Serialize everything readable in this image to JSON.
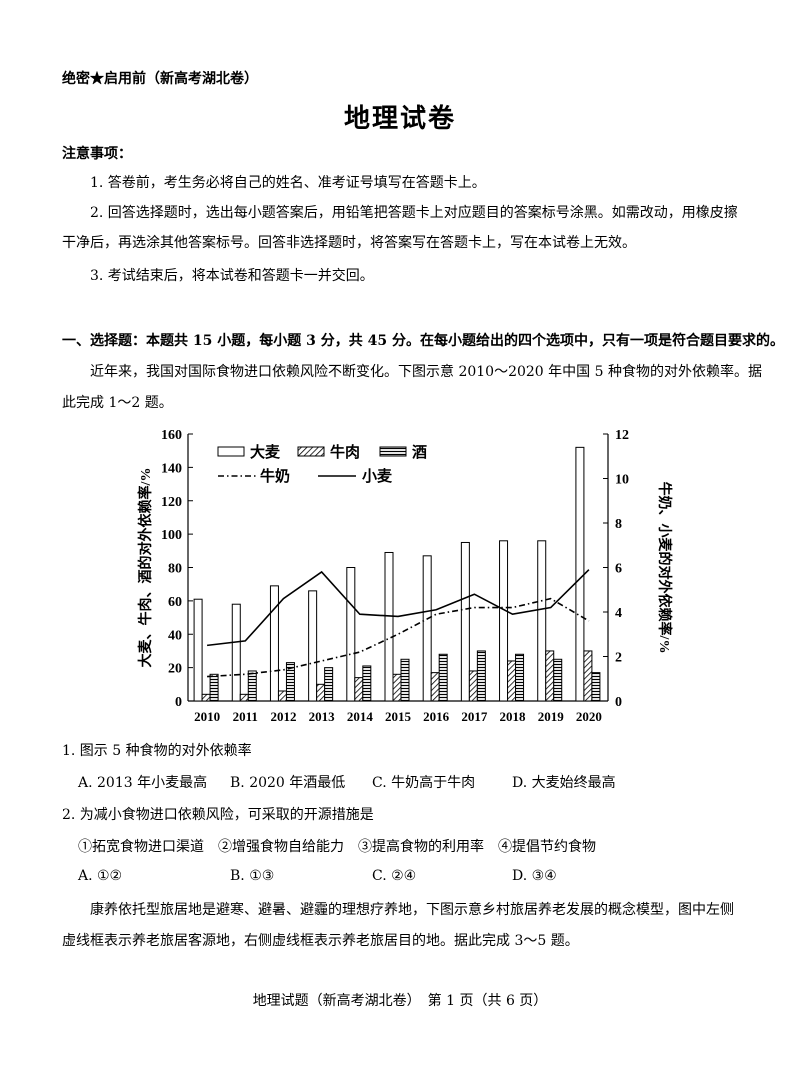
{
  "header": {
    "confidential": "绝密★启用前（新高考湖北卷）",
    "title": "地理试卷"
  },
  "notice": {
    "heading": "注意事项：",
    "items": [
      "1. 答卷前，考生务必将自己的姓名、准考证号填写在答题卡上。",
      "2. 回答选择题时，选出每小题答案后，用铅笔把答题卡上对应题目的答案标号涂黑。如需改动，用橡皮擦",
      "干净后，再选涂其他答案标号。回答非选择题时，将答案写在答题卡上，写在本试卷上无效。",
      "3. 考试结束后，将本试卷和答题卡一并交回。"
    ]
  },
  "section1": {
    "heading": "一、选择题：本题共 15 小题，每小题 3 分，共 45 分。在每小题给出的四个选项中，只有一项是符合题目要求的。",
    "intro_line1": "近年来，我国对国际食物进口依赖风险不断变化。下图示意 2010～2020 年中国 5 种食物的对外依赖率。据",
    "intro_line2": "此完成 1～2 题。"
  },
  "chart_data": {
    "type": "bar",
    "categories": [
      "2010",
      "2011",
      "2012",
      "2013",
      "2014",
      "2015",
      "2016",
      "2017",
      "2018",
      "2019",
      "2020"
    ],
    "series": [
      {
        "name": "大麦",
        "kind": "bar",
        "axis": "left",
        "pattern": "white",
        "values": [
          61,
          58,
          69,
          66,
          80,
          89,
          87,
          95,
          96,
          96,
          152
        ]
      },
      {
        "name": "牛肉",
        "kind": "bar",
        "axis": "left",
        "pattern": "hatch",
        "values": [
          4,
          4,
          6,
          10,
          14,
          16,
          17,
          18,
          24,
          30,
          30
        ]
      },
      {
        "name": "酒",
        "kind": "bar",
        "axis": "left",
        "pattern": "stripe",
        "values": [
          16,
          18,
          23,
          20,
          21,
          25,
          28,
          30,
          28,
          25,
          17
        ]
      },
      {
        "name": "牛奶",
        "kind": "line",
        "axis": "right",
        "dash": "dashdot",
        "values": [
          1.1,
          1.2,
          1.4,
          1.8,
          2.2,
          3.0,
          3.9,
          4.2,
          4.2,
          4.6,
          3.6
        ]
      },
      {
        "name": "小麦",
        "kind": "line",
        "axis": "right",
        "dash": "solid",
        "values": [
          2.5,
          2.7,
          4.6,
          5.8,
          3.9,
          3.8,
          4.1,
          4.8,
          3.9,
          4.2,
          5.9
        ]
      }
    ],
    "ylabel_left": "大麦、牛肉、酒的对外依赖率/%",
    "ylabel_right": "牛奶、小麦的对外依赖率/%",
    "ylim_left": [
      0,
      160
    ],
    "yticks_left": [
      "0",
      "20",
      "40",
      "60",
      "80",
      "100",
      "120",
      "140",
      "160"
    ],
    "ylim_right": [
      0,
      12
    ],
    "yticks_right": [
      "0",
      "2",
      "4",
      "6",
      "8",
      "10",
      "12"
    ],
    "grid": false,
    "legend_position": "top-left"
  },
  "questions": {
    "q1": {
      "stem": "1. 图示 5 种食物的对外依赖率",
      "options": [
        "A. 2013 年小麦最高",
        "B. 2020 年酒最低",
        "C. 牛奶高于牛肉",
        "D. 大麦始终最高"
      ]
    },
    "q2": {
      "stem": "2. 为减小食物进口依赖风险，可采取的开源措施是",
      "measures": "①拓宽食物进口渠道　②增强食物自给能力　③提高食物的利用率　④提倡节约食物",
      "options": [
        "A. ①②",
        "B. ①③",
        "C. ②④",
        "D. ③④"
      ]
    }
  },
  "passage2": {
    "line1": "康养依托型旅居地是避寒、避暑、避霾的理想疗养地，下图示意乡村旅居养老发展的概念模型，图中左侧",
    "line2": "虚线框表示养老旅居客源地，右侧虚线框表示养老旅居目的地。据此完成 3～5 题。"
  },
  "footer": {
    "text": "地理试题（新高考湖北卷）　第 1 页（共 6 页）"
  }
}
